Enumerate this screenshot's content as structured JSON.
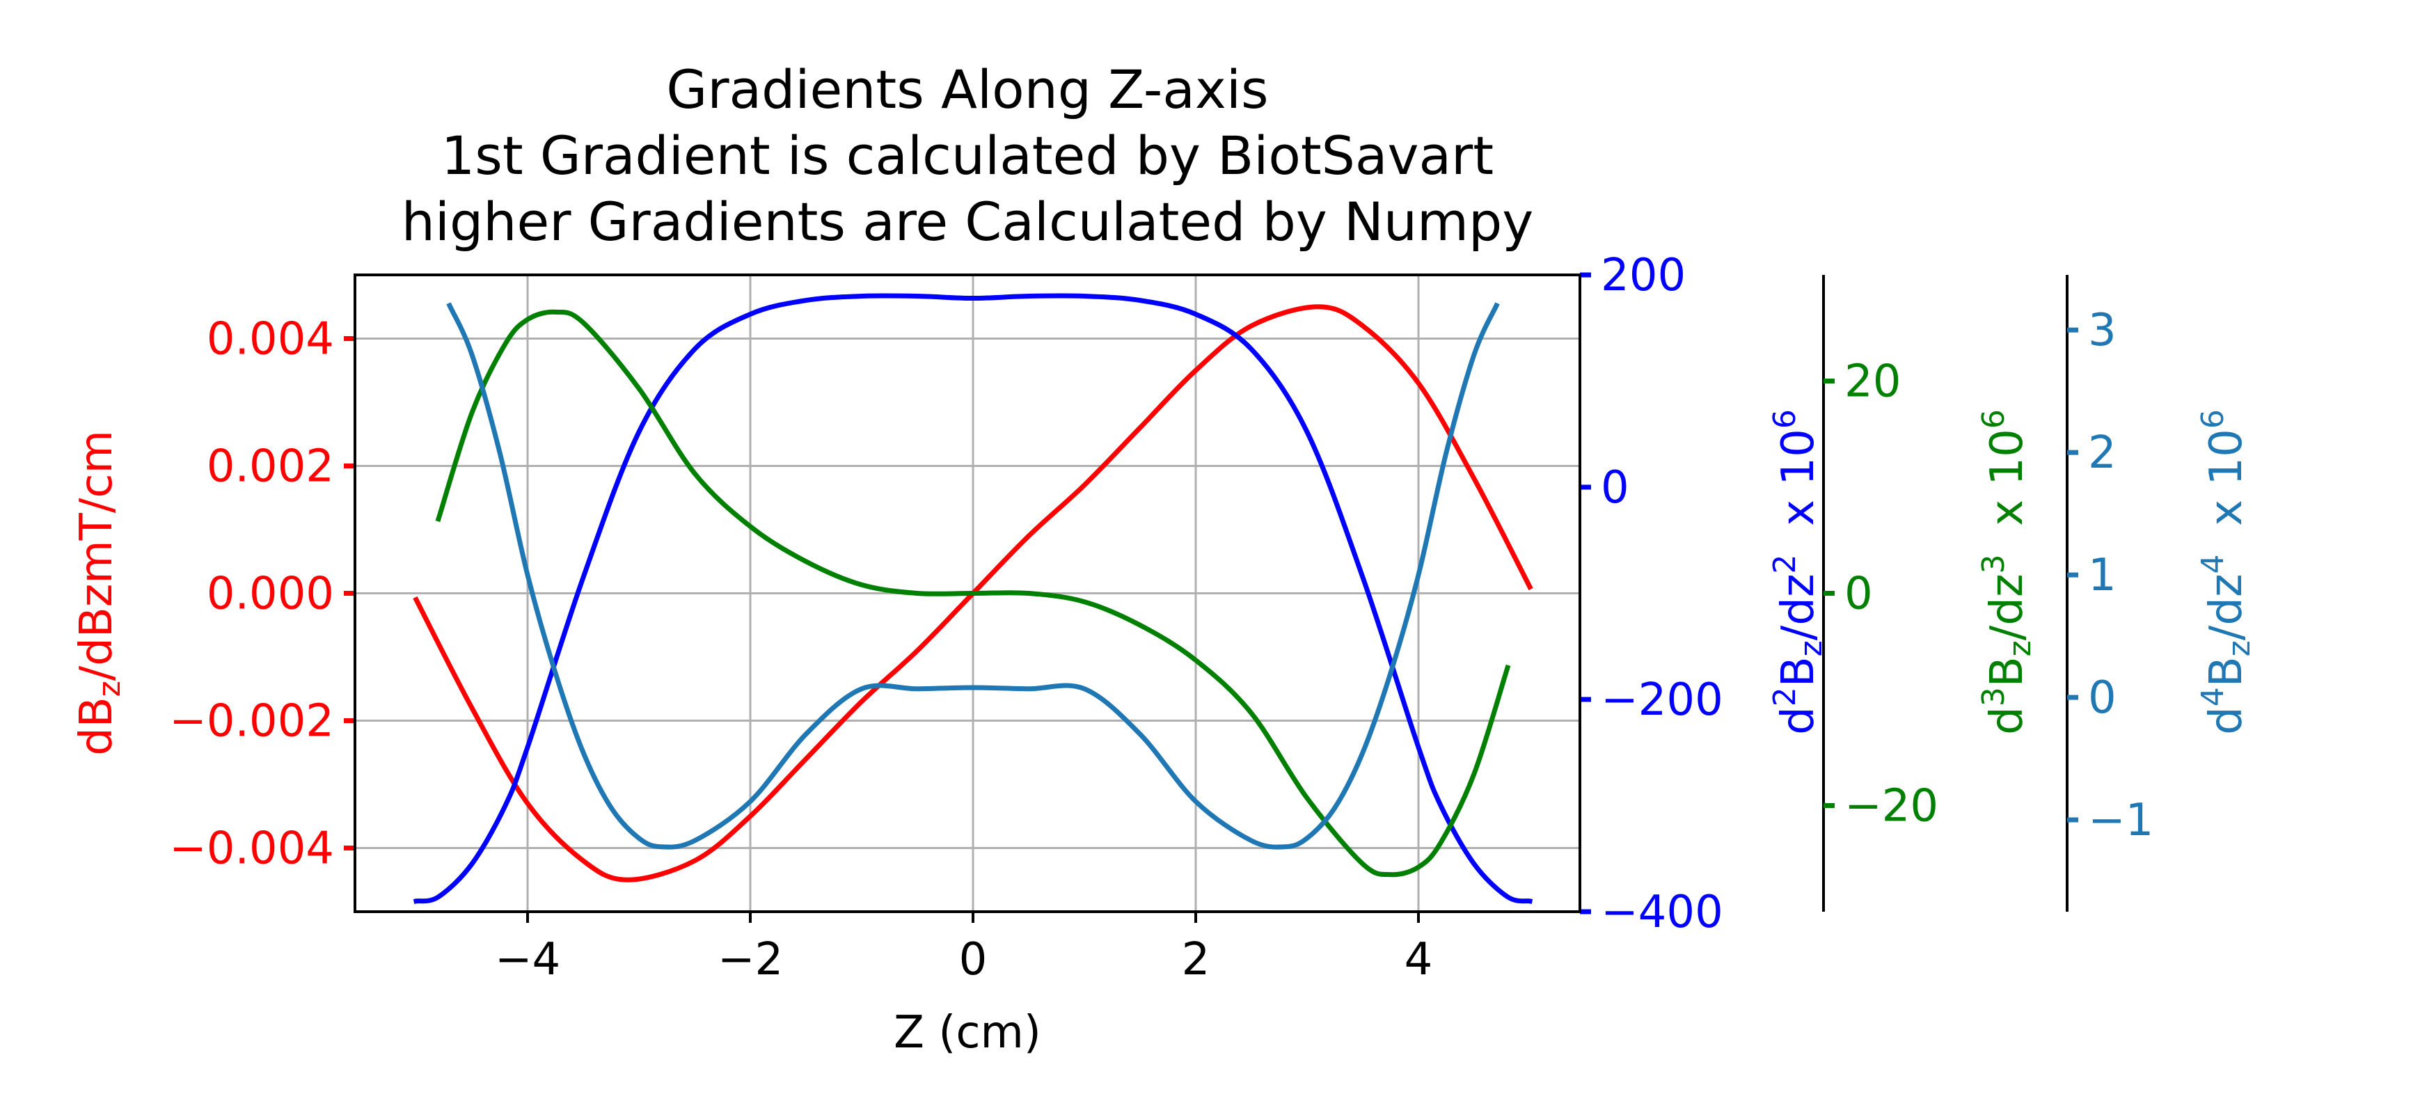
{
  "chart_data": {
    "type": "line",
    "title_lines": [
      "Gradients Along Z-axis",
      "1st Gradient is calculated by BiotSavart",
      "higher Gradients are Calculated by Numpy"
    ],
    "xlabel": "Z (cm)",
    "xlim": [
      -5.55,
      5.45
    ],
    "xticks": [
      -4,
      -2,
      0,
      2,
      4
    ],
    "xtick_labels": [
      "−4",
      "−2",
      "0",
      "2",
      "4"
    ],
    "grid": true,
    "axes": [
      {
        "key": "g1",
        "label_main": "dB",
        "label_sub": "z",
        "label_tail": "/dBzmT/cm",
        "color": "#ff0000",
        "ylim": [
          -0.005,
          0.005
        ],
        "ticks": [
          0.004,
          0.002,
          0.0,
          -0.002,
          -0.004
        ],
        "tick_labels": [
          "0.004",
          "0.002",
          "0.000",
          "−0.002",
          "−0.004"
        ]
      },
      {
        "key": "g2",
        "label_pre": "d",
        "label_pre_sup": "2",
        "label_main": "B",
        "label_sub": "z",
        "label_mid": "/dz",
        "label_mid_sup": "2",
        "label_tail": "  x 10",
        "label_tail_sup": "6",
        "color": "#0000ff",
        "ylim": [
          -400,
          200
        ],
        "ticks": [
          200,
          0,
          -200,
          -400
        ],
        "tick_labels": [
          "200",
          "0",
          "−200",
          "−400"
        ]
      },
      {
        "key": "g3",
        "label_pre": "d",
        "label_pre_sup": "3",
        "label_main": "B",
        "label_sub": "z",
        "label_mid": "/dz",
        "label_mid_sup": "3",
        "label_tail": "  x 10",
        "label_tail_sup": "6",
        "color": "#008000",
        "ylim": [
          -30,
          30
        ],
        "ticks": [
          20,
          0,
          -20
        ],
        "tick_labels": [
          "20",
          "0",
          "−20"
        ]
      },
      {
        "key": "g4",
        "label_pre": "d",
        "label_pre_sup": "4",
        "label_main": "B",
        "label_sub": "z",
        "label_mid": "/dz",
        "label_mid_sup": "4",
        "label_tail": "  x 10",
        "label_tail_sup": "6",
        "color": "#1f77b4",
        "ylim": [
          -1.75,
          3.45
        ],
        "ticks": [
          3,
          2,
          1,
          0,
          -1
        ],
        "tick_labels": [
          "3",
          "2",
          "1",
          "0",
          "−1"
        ]
      }
    ],
    "series": [
      {
        "axis": "g1",
        "color": "#ff0000",
        "x": [
          -5,
          -4.5,
          -4,
          -3.5,
          -3.1,
          -2.5,
          -2,
          -1.5,
          -1,
          -0.5,
          0,
          0.5,
          1,
          1.5,
          2,
          2.5,
          3.1,
          3.5,
          4,
          4.5,
          5
        ],
        "y": [
          -0.0001,
          -0.0018,
          -0.0033,
          -0.0042,
          -0.0045,
          -0.0042,
          -0.0035,
          -0.0026,
          -0.0017,
          -0.0009,
          0,
          0.0009,
          0.0017,
          0.0026,
          0.0035,
          0.0042,
          0.0045,
          0.0042,
          0.0033,
          0.0018,
          0.0001
        ]
      },
      {
        "axis": "g2",
        "color": "#0000ff",
        "x": [
          -5,
          -4.8,
          -4.5,
          -4.2,
          -4,
          -3.5,
          -3,
          -2.5,
          -2,
          -1.5,
          -1,
          -0.5,
          0,
          0.5,
          1,
          1.5,
          2,
          2.5,
          3,
          3.5,
          4,
          4.2,
          4.5,
          4.8,
          5
        ],
        "y": [
          -390,
          -386,
          -355,
          -300,
          -245,
          -85,
          52,
          130,
          163,
          176,
          180,
          180,
          178,
          180,
          180,
          176,
          163,
          130,
          52,
          -85,
          -245,
          -300,
          -355,
          -386,
          -390
        ]
      },
      {
        "axis": "g3",
        "color": "#008000",
        "x": [
          -4.8,
          -4.5,
          -4.2,
          -4,
          -3.75,
          -3.5,
          -3,
          -2.5,
          -2,
          -1.5,
          -1,
          -0.5,
          0,
          0.5,
          1,
          1.5,
          2,
          2.5,
          3,
          3.5,
          3.75,
          4,
          4.2,
          4.5,
          4.8
        ],
        "y": [
          7,
          17,
          23.5,
          25.8,
          26.5,
          25.5,
          19.3,
          11.3,
          6.3,
          3,
          0.8,
          0,
          0,
          0,
          -0.8,
          -3,
          -6.3,
          -11.3,
          -19.3,
          -25.5,
          -26.5,
          -25.8,
          -23.5,
          -17,
          -7
        ]
      },
      {
        "axis": "g4",
        "color": "#1f77b4",
        "x": [
          -4.7,
          -4.5,
          -4.25,
          -4,
          -3.75,
          -3.5,
          -3.25,
          -3,
          -2.8,
          -2.5,
          -2,
          -1.5,
          -1,
          -0.5,
          0,
          0.5,
          1,
          1.5,
          2,
          2.5,
          2.8,
          3,
          3.25,
          3.5,
          3.75,
          4,
          4.25,
          4.5,
          4.7
        ],
        "y": [
          3.2,
          2.8,
          2.0,
          1.0,
          0.2,
          -0.45,
          -0.9,
          -1.15,
          -1.22,
          -1.17,
          -0.85,
          -0.3,
          0.07,
          0.07,
          0.08,
          0.07,
          0.07,
          -0.3,
          -0.85,
          -1.17,
          -1.22,
          -1.15,
          -0.9,
          -0.45,
          0.2,
          1.0,
          2.0,
          2.8,
          3.2
        ]
      }
    ]
  }
}
